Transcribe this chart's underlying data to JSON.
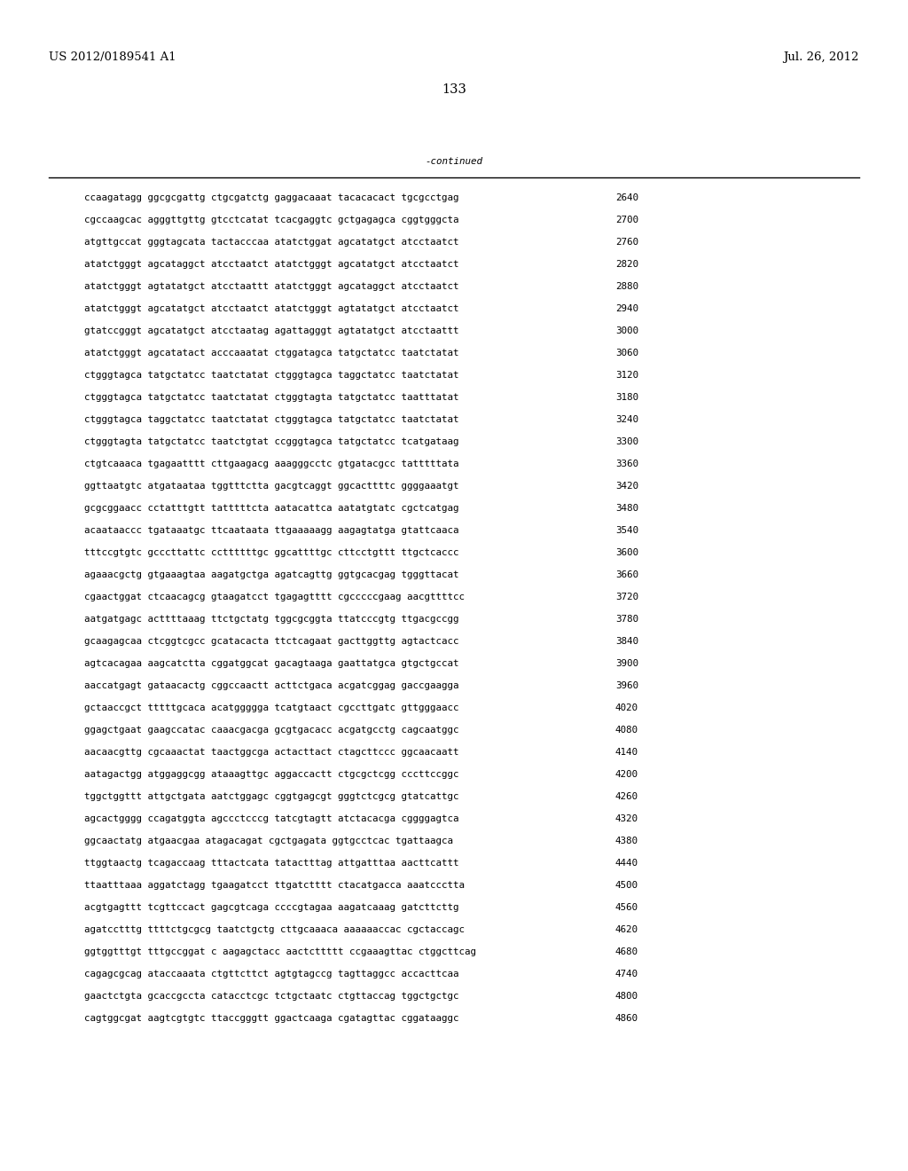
{
  "header_left": "US 2012/0189541 A1",
  "header_right": "Jul. 26, 2012",
  "page_number": "133",
  "continued_label": "-continued",
  "background_color": "#ffffff",
  "text_color": "#000000",
  "font_size_header": 9.5,
  "font_size_body": 7.8,
  "font_size_page": 10.5,
  "sequence_lines": [
    [
      "ccaagatagg ggcgcgattg ctgcgatctg gaggacaaat tacacacact tgcgcctgag",
      "2640"
    ],
    [
      "cgccaagcac agggttgttg gtcctcatat tcacgaggtc gctgagagca cggtgggcta",
      "2700"
    ],
    [
      "atgttgccat gggtagcata tactacccaa atatctggat agcatatgct atcctaatct",
      "2760"
    ],
    [
      "atatctgggt agcataggct atcctaatct atatctgggt agcatatgct atcctaatct",
      "2820"
    ],
    [
      "atatctgggt agtatatgct atcctaattt atatctgggt agcataggct atcctaatct",
      "2880"
    ],
    [
      "atatctgggt agcatatgct atcctaatct atatctgggt agtatatgct atcctaatct",
      "2940"
    ],
    [
      "gtatccgggt agcatatgct atcctaatag agattagggt agtatatgct atcctaattt",
      "3000"
    ],
    [
      "atatctgggt agcatatact acccaaatat ctggatagca tatgctatcc taatctatat",
      "3060"
    ],
    [
      "ctgggtagca tatgctatcc taatctatat ctgggtagca taggctatcc taatctatat",
      "3120"
    ],
    [
      "ctgggtagca tatgctatcc taatctatat ctgggtagta tatgctatcc taatttatat",
      "3180"
    ],
    [
      "ctgggtagca taggctatcc taatctatat ctgggtagca tatgctatcc taatctatat",
      "3240"
    ],
    [
      "ctgggtagta tatgctatcc taatctgtat ccgggtagca tatgctatcc tcatgataag",
      "3300"
    ],
    [
      "ctgtcaaaca tgagaatttt cttgaagacg aaagggcctc gtgatacgcc tatttttata",
      "3360"
    ],
    [
      "ggttaatgtc atgataataa tggtttctta gacgtcaggt ggcacttttc ggggaaatgt",
      "3420"
    ],
    [
      "gcgcggaacc cctatttgtt tatttttcta aatacattca aatatgtatc cgctcatgag",
      "3480"
    ],
    [
      "acaataaccc tgataaatgc ttcaataata ttgaaaaagg aagagtatga gtattcaaca",
      "3540"
    ],
    [
      "tttccgtgtc gcccttattc ccttttttgc ggcattttgc cttcctgttt ttgctcaccc",
      "3600"
    ],
    [
      "agaaacgctg gtgaaagtaa aagatgctga agatcagttg ggtgcacgag tgggttacat",
      "3660"
    ],
    [
      "cgaactggat ctcaacagcg gtaagatcct tgagagtttt cgcccccgaag aacgttttcc",
      "3720"
    ],
    [
      "aatgatgagc acttttaaag ttctgctatg tggcgcggta ttatcccgtg ttgacgccgg",
      "3780"
    ],
    [
      "gcaagagcaa ctcggtcgcc gcatacacta ttctcagaat gacttggttg agtactcacc",
      "3840"
    ],
    [
      "agtcacagaa aagcatctta cggatggcat gacagtaaga gaattatgca gtgctgccat",
      "3900"
    ],
    [
      "aaccatgagt gataacactg cggccaactt acttctgaca acgatcggag gaccgaagga",
      "3960"
    ],
    [
      "gctaaccgct tttttgcaca acatggggga tcatgtaact cgccttgatc gttgggaacc",
      "4020"
    ],
    [
      "ggagctgaat gaagccatac caaacgacga gcgtgacacc acgatgcctg cagcaatggc",
      "4080"
    ],
    [
      "aacaacgttg cgcaaactat taactggcga actacttact ctagcttccc ggcaacaatt",
      "4140"
    ],
    [
      "aatagactgg atggaggcgg ataaagttgc aggaccactt ctgcgctcgg cccttccggc",
      "4200"
    ],
    [
      "tggctggttt attgctgata aatctggagc cggtgagcgt gggtctcgcg gtatcattgc",
      "4260"
    ],
    [
      "agcactgggg ccagatggta agccctcccg tatcgtagtt atctacacga cggggagtca",
      "4320"
    ],
    [
      "ggcaactatg atgaacgaa atagacagat cgctgagata ggtgcctcac tgattaagca",
      "4380"
    ],
    [
      "ttggtaactg tcagaccaag tttactcata tatactttag attgatttaa aacttcattt",
      "4440"
    ],
    [
      "ttaatttaaa aggatctagg tgaagatcct ttgatctttt ctacatgacca aaatccctta",
      "4500"
    ],
    [
      "acgtgagttt tcgttccact gagcgtcaga ccccgtagaa aagatcaaag gatcttcttg",
      "4560"
    ],
    [
      "agatcctttg ttttctgcgcg taatctgctg cttgcaaaca aaaaaaccac cgctaccagc",
      "4620"
    ],
    [
      "ggtggtttgt tttgccggat c aagagctacc aactcttttt ccgaaagttac ctggcttcag",
      "4680"
    ],
    [
      "cagagcgcag ataccaaata ctgttcttct agtgtagccg tagttaggcc accacttcaa",
      "4740"
    ],
    [
      "gaactctgta gcaccgccta catacctcgc tctgctaatc ctgttaccag tggctgctgc",
      "4800"
    ],
    [
      "cagtggcgat aagtcgtgtc ttaccgggtt ggactcaaga cgatagttac cggataaggc",
      "4860"
    ]
  ]
}
